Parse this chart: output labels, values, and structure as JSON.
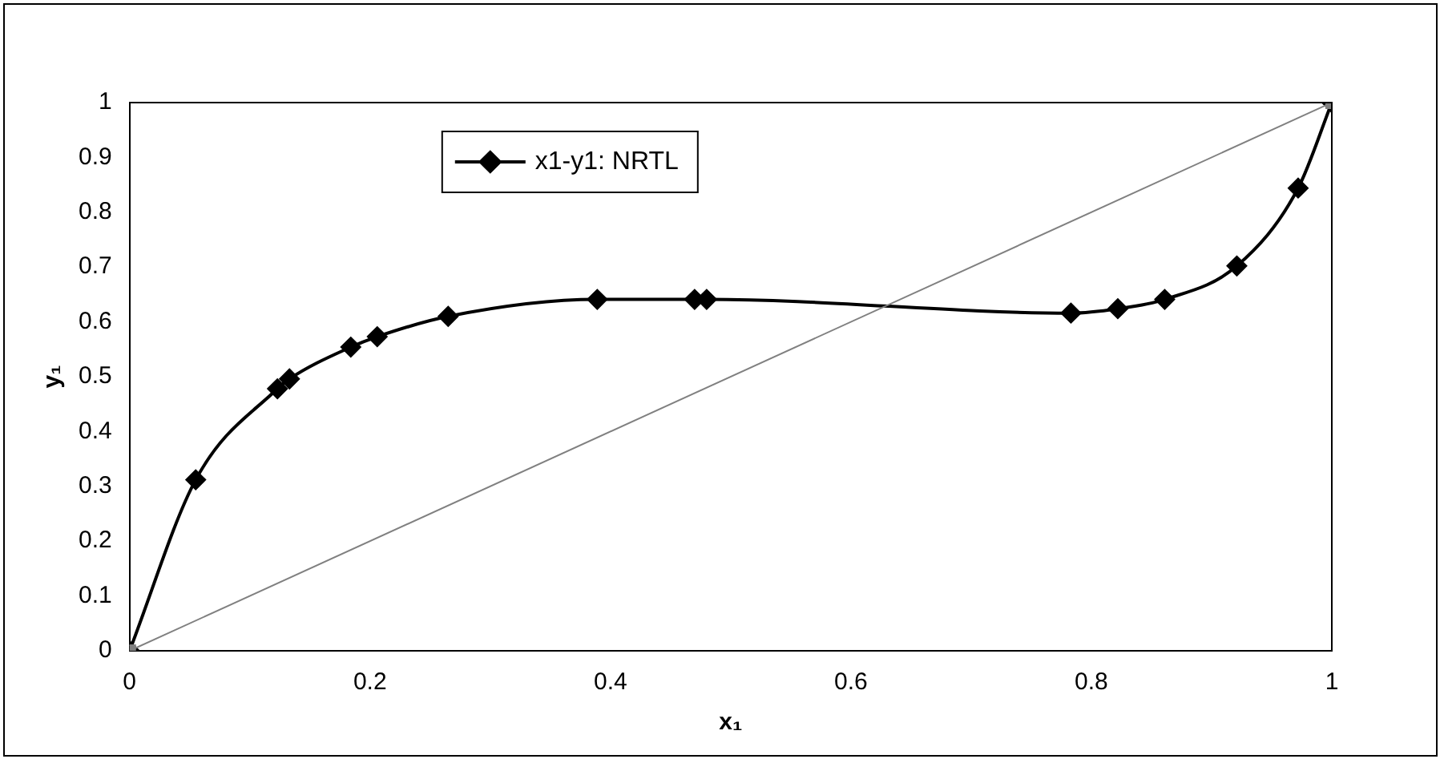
{
  "chart_data": {
    "type": "line",
    "xlabel": "x₁",
    "ylabel": "y₁",
    "series": [
      {
        "name": "x1-y1: NRTL",
        "color": "#000000",
        "marker": "diamond",
        "x": [
          0,
          0.055,
          0.123,
          0.133,
          0.184,
          0.206,
          0.265,
          0.389,
          0.47,
          0.48,
          0.783,
          0.822,
          0.861,
          0.921,
          0.972,
          1
        ],
        "values": [
          0,
          0.312,
          0.478,
          0.496,
          0.554,
          0.573,
          0.61,
          0.641,
          0.641,
          0.641,
          0.616,
          0.624,
          0.641,
          0.702,
          0.844,
          1
        ]
      },
      {
        "color": "#808080",
        "marker": "square",
        "x": [
          0,
          1
        ],
        "values": [
          0,
          1
        ]
      }
    ],
    "xlim": [
      0,
      1
    ],
    "xticks": [
      0,
      0.2,
      0.4,
      0.6,
      0.8,
      1
    ],
    "ylim": [
      0,
      1
    ],
    "yticks": [
      0,
      0.1,
      0.2,
      0.3,
      0.4,
      0.5,
      0.6,
      0.7,
      0.8,
      0.9,
      1
    ],
    "grid": false,
    "legend": "top left"
  }
}
